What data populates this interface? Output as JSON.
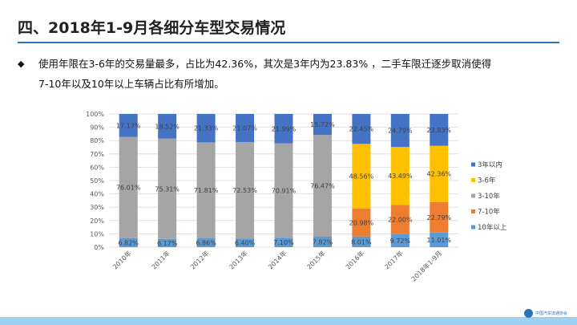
{
  "slide": {
    "title": "四、2018年1-9月各细分车型交易情况",
    "bullet_mark": "◆",
    "bullet_lines": [
      "使用年限在3-6年的交易量最多，占比为42.36%，其次是3年内为23.83% ，二手车限迁逐步取消使得",
      "7-10年以及10年以上车辆占比有所增加。"
    ],
    "footer_logo_text": "中国汽车流通协会"
  },
  "colors": {
    "accent": "#2e74b5",
    "footer": "#9ed1f0"
  },
  "chart_data": {
    "type": "bar",
    "stacked": true,
    "percent": true,
    "categories": [
      "2010年",
      "2011年",
      "2012年",
      "2013年",
      "2014年",
      "2015年",
      "2016年",
      "2017年",
      "2018年1-9月"
    ],
    "ylim": [
      0,
      100
    ],
    "yticks": [
      "0%",
      "10%",
      "20%",
      "30%",
      "40%",
      "50%",
      "60%",
      "70%",
      "80%",
      "90%",
      "100%"
    ],
    "legend_position": "right",
    "series": [
      {
        "name": "10年以上",
        "color": "#5b9bd5",
        "values": [
          6.82,
          6.17,
          6.86,
          6.4,
          7.1,
          7.82,
          8.01,
          9.72,
          11.01
        ],
        "labels": [
          "6.82%",
          "6.17%",
          "6.86%",
          "6.40%",
          "7.10%",
          "7.82%",
          "8.01%",
          "9.72%",
          "11.01%"
        ]
      },
      {
        "name": "7-10年",
        "color": "#ed7d31",
        "values": [
          0,
          0,
          0,
          0,
          0,
          0,
          20.98,
          22.0,
          22.79
        ],
        "labels": [
          "",
          "",
          "",
          "",
          "",
          "",
          "20.98%",
          "22.00%",
          "22.79%"
        ]
      },
      {
        "name": "3-10年",
        "color": "#a5a5a5",
        "values": [
          76.01,
          75.31,
          71.81,
          72.53,
          70.91,
          76.47,
          0,
          0,
          0
        ],
        "labels": [
          "76.01%",
          "75.31%",
          "71.81%",
          "72.53%",
          "70.91%",
          "76.47%",
          "",
          "",
          ""
        ]
      },
      {
        "name": "3-6年",
        "color": "#ffc000",
        "values": [
          0,
          0,
          0,
          0,
          0,
          0,
          48.56,
          43.49,
          42.36
        ],
        "labels": [
          "",
          "",
          "",
          "",
          "",
          "",
          "48.56%",
          "43.49%",
          "42.36%"
        ]
      },
      {
        "name": "3年以内",
        "color": "#4472c4",
        "values": [
          17.17,
          18.52,
          21.33,
          21.07,
          21.99,
          15.72,
          22.45,
          24.79,
          23.83
        ],
        "labels": [
          "17.17%",
          "18.52%",
          "21.33%",
          "21.07%",
          "21.99%",
          "15.72%",
          "22.45%",
          "24.79%",
          "23.83%"
        ]
      }
    ],
    "legend_order": [
      "3年以内",
      "3-6年",
      "3-10年",
      "7-10年",
      "10年以上"
    ]
  }
}
